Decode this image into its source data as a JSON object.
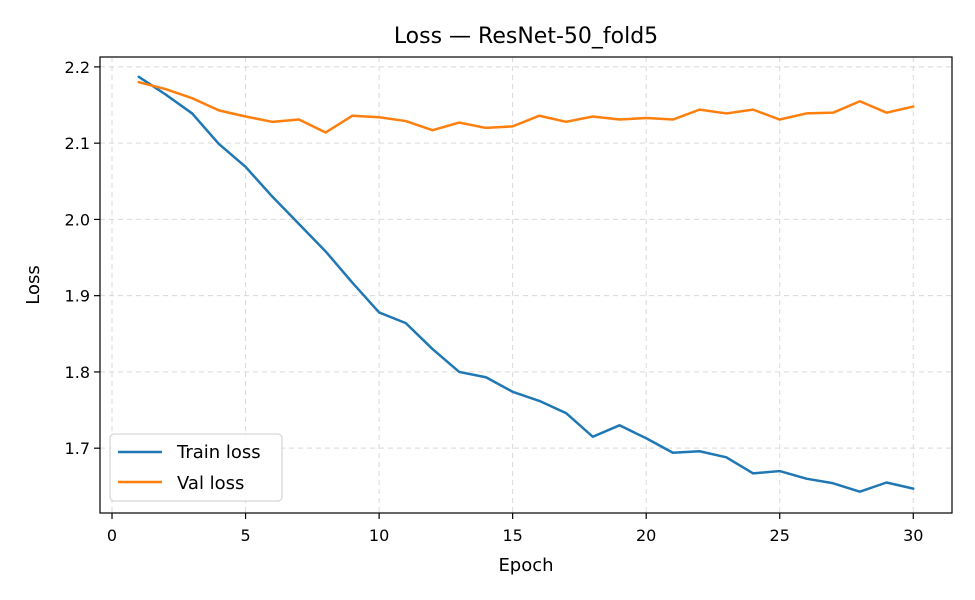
{
  "chart_data": {
    "type": "line",
    "title": "Loss — ResNet-50_fold5",
    "xlabel": "Epoch",
    "ylabel": "Loss",
    "xlim": [
      -0.45,
      31.45
    ],
    "ylim": [
      1.615,
      2.213
    ],
    "xticks": [
      0,
      5,
      10,
      15,
      20,
      25,
      30
    ],
    "yticks": [
      1.7,
      1.8,
      1.9,
      2.0,
      2.1,
      2.2
    ],
    "xtick_labels": [
      "0",
      "5",
      "10",
      "15",
      "20",
      "25",
      "30"
    ],
    "ytick_labels": [
      "1.7",
      "1.8",
      "1.9",
      "2.0",
      "2.1",
      "2.2"
    ],
    "grid": true,
    "legend_position": "lower-left",
    "x": [
      1,
      2,
      3,
      4,
      5,
      6,
      7,
      8,
      9,
      10,
      11,
      12,
      13,
      14,
      15,
      16,
      17,
      18,
      19,
      20,
      21,
      22,
      23,
      24,
      25,
      26,
      27,
      28,
      29,
      30
    ],
    "series": [
      {
        "name": "Train loss",
        "color": "#1f77b4",
        "values": [
          2.187,
          2.164,
          2.139,
          2.099,
          2.069,
          2.03,
          1.994,
          1.958,
          1.917,
          1.878,
          1.864,
          1.83,
          1.8,
          1.793,
          1.774,
          1.762,
          1.746,
          1.715,
          1.73,
          1.713,
          1.694,
          1.696,
          1.688,
          1.667,
          1.67,
          1.66,
          1.654,
          1.643,
          1.655,
          1.647
        ]
      },
      {
        "name": "Val loss",
        "color": "#ff7f0e",
        "values": [
          2.18,
          2.171,
          2.159,
          2.143,
          2.135,
          2.128,
          2.131,
          2.114,
          2.136,
          2.134,
          2.129,
          2.117,
          2.127,
          2.12,
          2.122,
          2.136,
          2.128,
          2.135,
          2.131,
          2.133,
          2.131,
          2.144,
          2.139,
          2.144,
          2.131,
          2.139,
          2.14,
          2.155,
          2.14,
          2.148
        ]
      }
    ]
  }
}
